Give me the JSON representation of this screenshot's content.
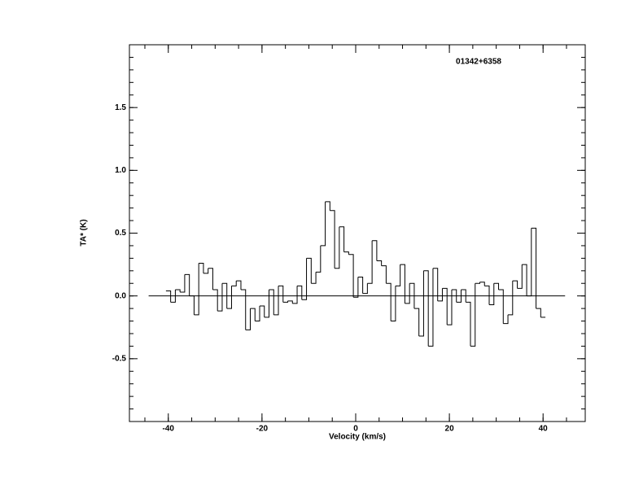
{
  "chart_data": {
    "type": "step",
    "annotation": "01342+6358",
    "x_label": "Velocity (km/s)",
    "y_label": "TA* (K)",
    "xlim": [
      -48.3,
      49.0
    ],
    "ylim": [
      -1.0,
      2.0
    ],
    "xticks": [
      -40,
      -20,
      0,
      20,
      40
    ],
    "yticks": [
      {
        "value": -0.5,
        "label": "-0.5"
      },
      {
        "value": 0,
        "label": "0.0"
      },
      {
        "value": 0.5,
        "label": "0.5"
      },
      {
        "value": 1,
        "label": "1.0"
      },
      {
        "value": 1.5,
        "label": "1.5"
      }
    ],
    "baseline": {
      "y": 0,
      "xrange": [
        -44.2,
        44.7
      ]
    },
    "color": "#000000",
    "x": [
      -40,
      -39,
      -38,
      -37,
      -36,
      -35,
      -34,
      -33,
      -32,
      -31,
      -30,
      -29,
      -28,
      -27,
      -26,
      -25,
      -24,
      -23,
      -22,
      -21,
      -20,
      -19,
      -18,
      -17,
      -16,
      -15,
      -14,
      -13,
      -12,
      -11,
      -10,
      -9,
      -8,
      -7,
      -6,
      -5,
      -4,
      -3,
      -2,
      -1,
      0,
      1,
      2,
      3,
      4,
      5,
      6,
      7,
      8,
      9,
      10,
      11,
      12,
      13,
      14,
      15,
      16,
      17,
      18,
      19,
      20,
      21,
      22,
      23,
      24,
      25,
      26,
      27,
      28,
      29,
      30,
      31,
      32,
      33,
      34,
      35,
      36,
      37,
      38,
      39,
      40
    ],
    "values": [
      0.04,
      -0.05,
      0.05,
      0.03,
      0.17,
      0.0,
      -0.15,
      0.26,
      0.18,
      0.22,
      0.05,
      -0.12,
      0.1,
      -0.1,
      0.08,
      0.12,
      0.05,
      -0.27,
      -0.1,
      -0.2,
      -0.08,
      -0.17,
      0.05,
      -0.15,
      0.08,
      -0.05,
      -0.04,
      -0.06,
      0.08,
      -0.03,
      0.3,
      0.1,
      0.19,
      0.4,
      0.75,
      0.68,
      0.22,
      0.55,
      0.35,
      0.33,
      -0.01,
      0.15,
      0.02,
      0.1,
      0.44,
      0.28,
      0.24,
      0.1,
      -0.2,
      0.08,
      0.25,
      -0.06,
      0.1,
      -0.1,
      -0.32,
      0.2,
      -0.4,
      0.22,
      -0.04,
      0.06,
      -0.23,
      0.05,
      -0.05,
      0.05,
      -0.05,
      -0.4,
      0.1,
      0.11,
      0.08,
      -0.07,
      0.1,
      0.05,
      -0.22,
      -0.15,
      0.12,
      0.06,
      0.25,
      0.0,
      0.54,
      -0.1,
      -0.17
    ]
  }
}
